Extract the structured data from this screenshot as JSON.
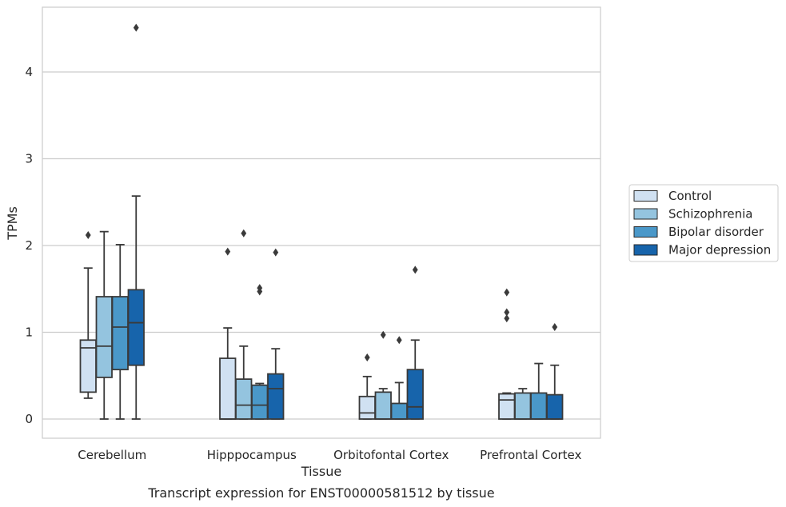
{
  "caption": "Transcript expression for ENST00000581512 by tissue",
  "chart_data": {
    "type": "box",
    "title": "",
    "xlabel": "Tissue",
    "ylabel": "TPMs",
    "ylim": [
      -0.22,
      4.75
    ],
    "yticks": [
      0,
      1,
      2,
      3,
      4
    ],
    "grid": "horizontal",
    "legend_position": "right",
    "categories": [
      "Cerebellum",
      "Hipppocampus",
      "Orbitofontal Cortex",
      "Prefrontal Cortex"
    ],
    "series": [
      {
        "name": "Control",
        "color": "#d0e1f2",
        "boxes": [
          {
            "q1": 0.31,
            "median": 0.82,
            "q3": 0.91,
            "whisker_low": 0.24,
            "whisker_high": 1.74,
            "outliers": [
              2.12
            ]
          },
          {
            "q1": 0.0,
            "median": 0.0,
            "q3": 0.7,
            "whisker_low": 0.0,
            "whisker_high": 1.05,
            "outliers": [
              1.93
            ]
          },
          {
            "q1": 0.0,
            "median": 0.07,
            "q3": 0.26,
            "whisker_low": 0.0,
            "whisker_high": 0.49,
            "outliers": [
              0.71
            ]
          },
          {
            "q1": 0.0,
            "median": 0.22,
            "q3": 0.29,
            "whisker_low": 0.0,
            "whisker_high": 0.3,
            "outliers": [
              1.16,
              1.23,
              1.46
            ]
          }
        ]
      },
      {
        "name": "Schizophrenia",
        "color": "#94c4df",
        "boxes": [
          {
            "q1": 0.48,
            "median": 0.84,
            "q3": 1.41,
            "whisker_low": 0.0,
            "whisker_high": 2.16,
            "outliers": []
          },
          {
            "q1": 0.0,
            "median": 0.16,
            "q3": 0.46,
            "whisker_low": 0.0,
            "whisker_high": 0.84,
            "outliers": [
              2.14
            ]
          },
          {
            "q1": 0.0,
            "median": 0.0,
            "q3": 0.31,
            "whisker_low": 0.0,
            "whisker_high": 0.35,
            "outliers": [
              0.97
            ]
          },
          {
            "q1": 0.0,
            "median": 0.0,
            "q3": 0.3,
            "whisker_low": 0.0,
            "whisker_high": 0.35,
            "outliers": []
          }
        ]
      },
      {
        "name": "Bipolar disorder",
        "color": "#4a98c9",
        "boxes": [
          {
            "q1": 0.57,
            "median": 1.06,
            "q3": 1.41,
            "whisker_low": 0.0,
            "whisker_high": 2.01,
            "outliers": []
          },
          {
            "q1": 0.0,
            "median": 0.16,
            "q3": 0.39,
            "whisker_low": 0.0,
            "whisker_high": 0.41,
            "outliers": [
              1.47,
              1.51
            ]
          },
          {
            "q1": 0.0,
            "median": 0.0,
            "q3": 0.18,
            "whisker_low": 0.0,
            "whisker_high": 0.42,
            "outliers": [
              0.91
            ]
          },
          {
            "q1": 0.0,
            "median": 0.0,
            "q3": 0.3,
            "whisker_low": 0.0,
            "whisker_high": 0.64,
            "outliers": []
          }
        ]
      },
      {
        "name": "Major depression",
        "color": "#1764ab",
        "boxes": [
          {
            "q1": 0.62,
            "median": 1.11,
            "q3": 1.49,
            "whisker_low": 0.0,
            "whisker_high": 2.57,
            "outliers": [
              4.51
            ]
          },
          {
            "q1": 0.0,
            "median": 0.35,
            "q3": 0.52,
            "whisker_low": 0.0,
            "whisker_high": 0.81,
            "outliers": [
              1.92
            ]
          },
          {
            "q1": 0.0,
            "median": 0.14,
            "q3": 0.57,
            "whisker_low": 0.0,
            "whisker_high": 0.91,
            "outliers": [
              1.72
            ]
          },
          {
            "q1": 0.0,
            "median": 0.0,
            "q3": 0.28,
            "whisker_low": 0.0,
            "whisker_high": 0.62,
            "outliers": [
              1.06
            ]
          }
        ]
      }
    ]
  }
}
